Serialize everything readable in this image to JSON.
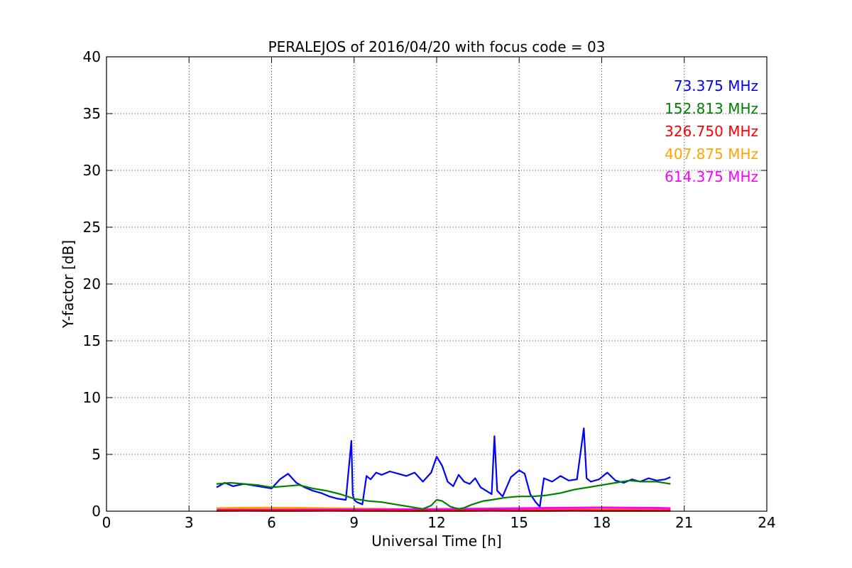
{
  "chart_data": {
    "type": "line",
    "title": "PERALEJOS of 2016/04/20 with focus code = 03",
    "xlabel": "Universal Time [h]",
    "ylabel": "Y-factor [dB]",
    "xlim": [
      0,
      24
    ],
    "ylim": [
      0,
      40
    ],
    "xticks": [
      0,
      3,
      6,
      9,
      12,
      15,
      18,
      21,
      24
    ],
    "yticks": [
      0,
      5,
      10,
      15,
      20,
      25,
      30,
      35,
      40
    ],
    "grid": true,
    "legend_placement": "top-right",
    "series": [
      {
        "name": "73.375 MHz",
        "color": "#0000ff",
        "x": [
          4.0,
          4.3,
          4.6,
          5.0,
          5.5,
          6.0,
          6.3,
          6.6,
          6.9,
          7.2,
          7.5,
          7.8,
          8.1,
          8.4,
          8.7,
          8.9,
          8.95,
          9.0,
          9.1,
          9.3,
          9.45,
          9.6,
          9.8,
          10.0,
          10.3,
          10.6,
          10.9,
          11.2,
          11.5,
          11.8,
          12.0,
          12.2,
          12.4,
          12.6,
          12.8,
          13.0,
          13.2,
          13.4,
          13.6,
          13.8,
          14.0,
          14.1,
          14.2,
          14.4,
          14.7,
          15.0,
          15.2,
          15.4,
          15.6,
          15.75,
          15.9,
          16.2,
          16.5,
          16.8,
          17.1,
          17.35,
          17.45,
          17.6,
          17.9,
          18.2,
          18.5,
          18.8,
          19.1,
          19.4,
          19.7,
          20.0,
          20.3,
          20.5
        ],
        "y": [
          2.1,
          2.5,
          2.2,
          2.4,
          2.2,
          2.0,
          2.8,
          3.3,
          2.5,
          2.1,
          1.8,
          1.6,
          1.3,
          1.1,
          1.0,
          6.2,
          1.5,
          1.0,
          0.8,
          0.6,
          3.1,
          2.8,
          3.4,
          3.2,
          3.5,
          3.3,
          3.1,
          3.4,
          2.6,
          3.4,
          4.8,
          4.0,
          2.6,
          2.2,
          3.2,
          2.6,
          2.4,
          2.9,
          2.1,
          1.8,
          1.5,
          6.6,
          1.8,
          1.3,
          3.0,
          3.6,
          3.3,
          1.5,
          0.8,
          0.4,
          2.9,
          2.6,
          3.1,
          2.7,
          2.8,
          7.3,
          2.9,
          2.6,
          2.8,
          3.4,
          2.7,
          2.5,
          2.8,
          2.6,
          2.9,
          2.7,
          2.8,
          3.0
        ]
      },
      {
        "name": "152.813 MHz",
        "color": "#008000",
        "x": [
          4.0,
          4.5,
          5.0,
          5.5,
          6.0,
          6.5,
          7.0,
          7.5,
          8.0,
          8.5,
          9.0,
          9.5,
          10.0,
          10.5,
          11.0,
          11.5,
          11.8,
          12.0,
          12.2,
          12.5,
          12.8,
          13.0,
          13.3,
          13.7,
          14.0,
          14.5,
          15.0,
          15.5,
          16.0,
          16.5,
          17.0,
          17.5,
          18.0,
          18.5,
          19.0,
          19.5,
          20.0,
          20.5
        ],
        "y": [
          2.4,
          2.5,
          2.4,
          2.3,
          2.1,
          2.2,
          2.3,
          2.0,
          1.8,
          1.5,
          1.1,
          0.9,
          0.8,
          0.6,
          0.4,
          0.2,
          0.5,
          1.0,
          0.9,
          0.4,
          0.2,
          0.3,
          0.6,
          0.9,
          1.0,
          1.2,
          1.3,
          1.3,
          1.4,
          1.6,
          1.9,
          2.1,
          2.3,
          2.5,
          2.7,
          2.6,
          2.6,
          2.4
        ]
      },
      {
        "name": "326.750 MHz",
        "color": "#ff0000",
        "x": [
          4.0,
          5.0,
          6.0,
          7.0,
          8.0,
          9.0,
          10.0,
          11.0,
          12.0,
          13.0,
          14.0,
          15.0,
          16.0,
          17.0,
          18.0,
          19.0,
          20.0,
          20.5
        ],
        "y": [
          0.05,
          0.06,
          0.05,
          0.05,
          0.06,
          0.05,
          0.05,
          0.04,
          0.05,
          0.05,
          0.06,
          0.05,
          0.05,
          0.06,
          0.05,
          0.05,
          0.05,
          0.05
        ]
      },
      {
        "name": "407.875 MHz",
        "color": "#ffa500",
        "x": [
          4.0,
          5.0,
          6.0,
          7.0,
          8.0,
          9.0,
          10.0,
          11.0,
          12.0,
          13.0,
          14.0,
          15.0,
          16.0,
          17.0,
          18.0,
          19.0,
          20.0,
          20.5
        ],
        "y": [
          0.25,
          0.3,
          0.3,
          0.28,
          0.25,
          0.22,
          0.2,
          0.15,
          0.12,
          0.12,
          0.15,
          0.18,
          0.2,
          0.22,
          0.2,
          0.18,
          0.15,
          0.12
        ]
      },
      {
        "name": "614.375 MHz",
        "color": "#ff00ff",
        "x": [
          4.0,
          5.0,
          6.0,
          7.0,
          8.0,
          9.0,
          10.0,
          11.0,
          12.0,
          13.0,
          14.0,
          15.0,
          16.0,
          17.0,
          18.0,
          19.0,
          20.0,
          20.5
        ],
        "y": [
          0.12,
          0.12,
          0.12,
          0.13,
          0.14,
          0.15,
          0.15,
          0.16,
          0.18,
          0.2,
          0.22,
          0.25,
          0.28,
          0.3,
          0.32,
          0.3,
          0.28,
          0.25
        ]
      }
    ]
  }
}
